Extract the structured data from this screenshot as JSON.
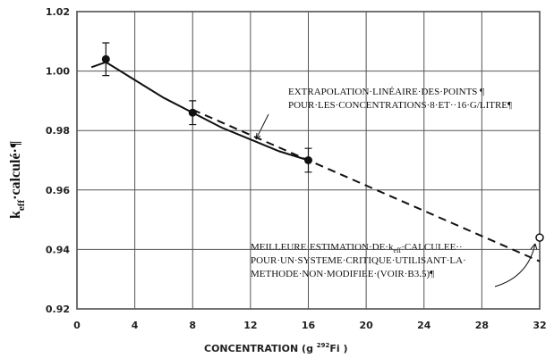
{
  "chart_data": {
    "type": "scatter",
    "xlabel": [
      "CONCENTRATION  (g ",
      "292",
      "Fi        )"
    ],
    "ylabel": [
      "k",
      "eff",
      "·calculé·¶"
    ],
    "xlim": [
      0,
      32
    ],
    "xticks": [
      0,
      4,
      8,
      12,
      16,
      20,
      24,
      28,
      32
    ],
    "ylim": [
      0.92,
      1.02
    ],
    "yticks": [
      0.92,
      0.94,
      0.96,
      0.98,
      {
        "value": 1,
        "label": "1.00"
      },
      1.02
    ],
    "grid": true,
    "points": {
      "x": [
        2,
        8,
        16
      ],
      "values": [
        1.004,
        0.986,
        0.97
      ],
      "errors": [
        0.0055,
        0.004,
        0.004
      ],
      "color": "#111111"
    },
    "best_estimate": {
      "x": [
        32
      ],
      "values": [
        0.944
      ],
      "color": "#111111"
    },
    "fit": {
      "x": [
        1,
        2,
        4,
        6,
        8,
        10,
        12,
        14,
        16
      ],
      "values": [
        1.0013,
        1.003,
        0.997,
        0.991,
        0.986,
        0.981,
        0.977,
        0.973,
        0.97
      ],
      "color": "#111111"
    },
    "extrapolation": {
      "x": [
        8,
        16,
        24,
        32
      ],
      "values": [
        0.987,
        0.97,
        0.953,
        0.936
      ],
      "color": "#111111"
    },
    "annotation_1": [
      "EXTRAPOLATION·LINÉAIRE·DES·POINTS ¶",
      "POUR·LES·CONCENTRATIONS·8·ET··16·G/LITRE¶"
    ],
    "annotation_2": [
      [
        "MEILLEURE·ESTIMATION·DE·k",
        "eff",
        "·CALCULEE··"
      ],
      "POUR·UN·SYSTEME·CRITIQUE·UTILISANT·LA·",
      "METHODE·NON·MODIFIEE·(VOIR·B3.5)¶"
    ]
  }
}
